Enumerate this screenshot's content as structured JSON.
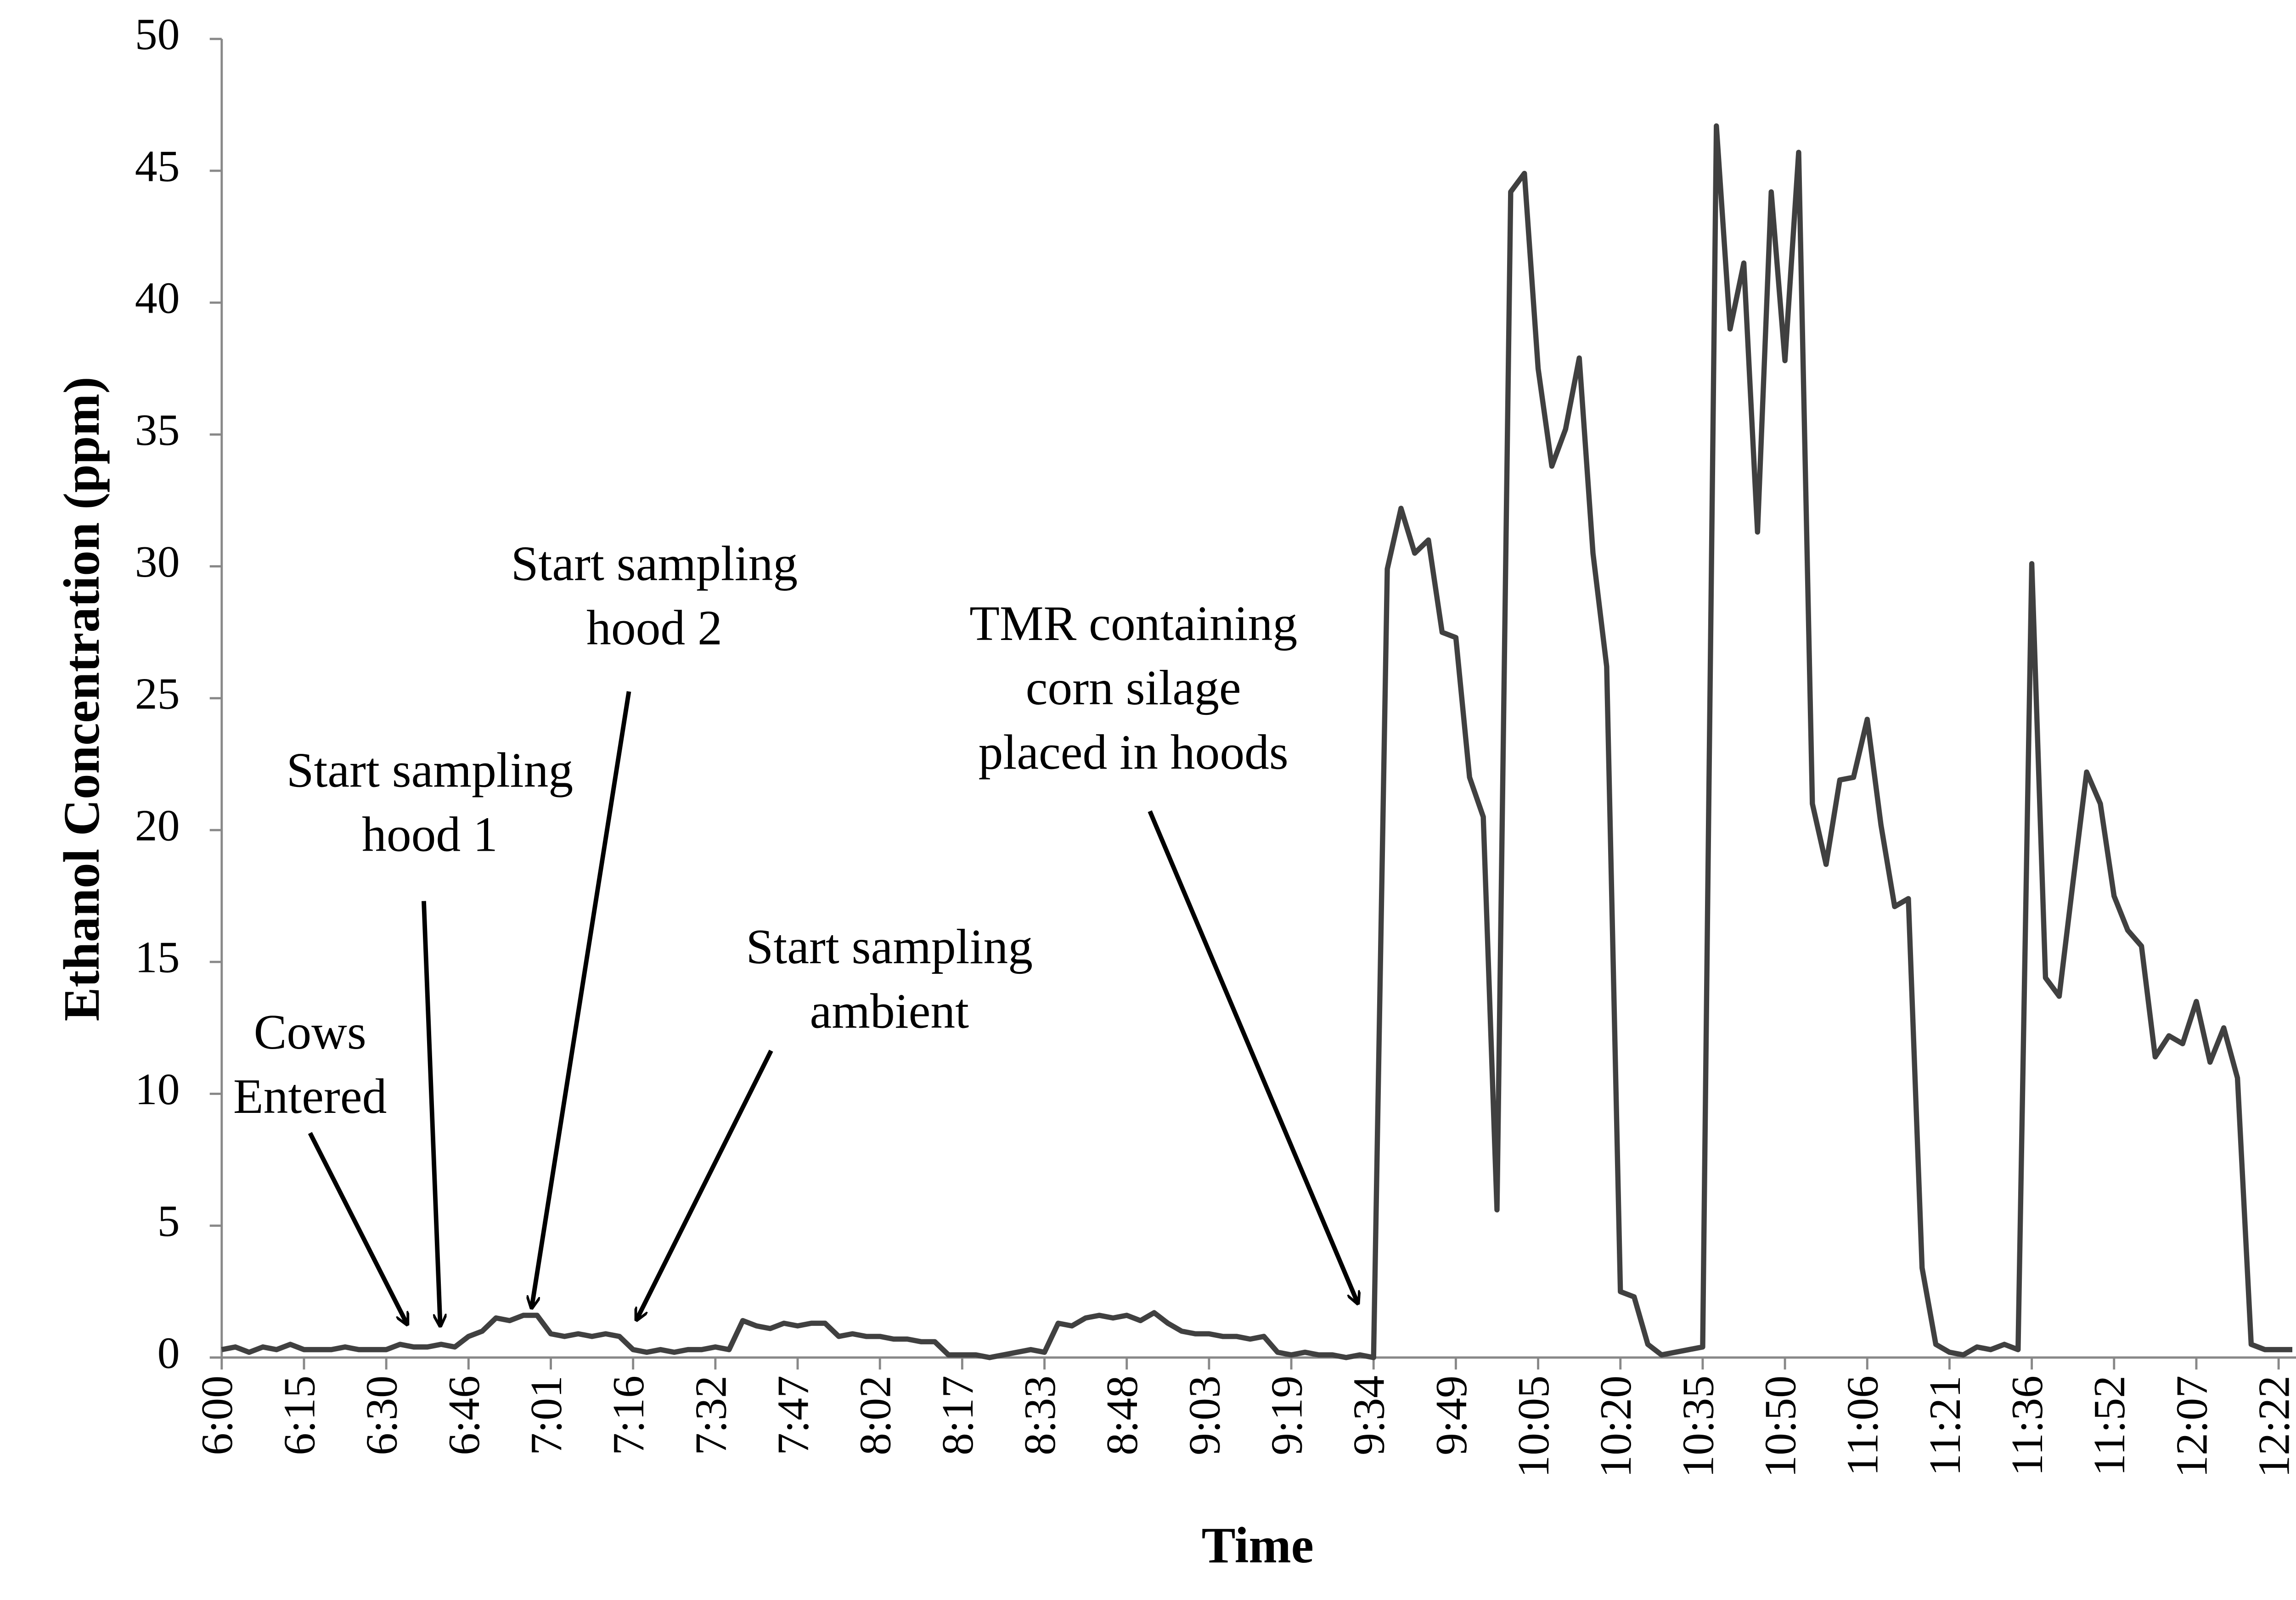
{
  "chart_data": {
    "type": "line",
    "xlabel": "Time",
    "ylabel": "Ethanol Concentration (ppm)",
    "categories": [
      "6:00",
      null,
      null,
      null,
      null,
      null,
      "6:15",
      null,
      null,
      null,
      null,
      null,
      "6:30",
      null,
      null,
      null,
      null,
      null,
      "6:46",
      null,
      null,
      null,
      null,
      null,
      "7:01",
      null,
      null,
      null,
      null,
      null,
      "7:16",
      null,
      null,
      null,
      null,
      null,
      "7:32",
      null,
      null,
      null,
      null,
      null,
      "7:47",
      null,
      null,
      null,
      null,
      null,
      "8:02",
      null,
      null,
      null,
      null,
      null,
      "8:17",
      null,
      null,
      null,
      null,
      null,
      "8:33",
      null,
      null,
      null,
      null,
      null,
      "8:48",
      null,
      null,
      null,
      null,
      null,
      "9:03",
      null,
      null,
      null,
      null,
      null,
      "9:19",
      null,
      null,
      null,
      null,
      null,
      "9:34",
      null,
      null,
      null,
      null,
      null,
      "9:49",
      null,
      null,
      null,
      null,
      null,
      "10:05",
      null,
      null,
      null,
      null,
      null,
      "10:20",
      null,
      null,
      null,
      null,
      null,
      "10:35",
      null,
      null,
      null,
      null,
      null,
      "10:50",
      null,
      null,
      null,
      null,
      null,
      "11:06",
      null,
      null,
      null,
      null,
      null,
      "11:21",
      null,
      null,
      null,
      null,
      null,
      "11:36",
      null,
      null,
      null,
      null,
      null,
      "11:52",
      null,
      null,
      null,
      null,
      null,
      "12:07",
      null,
      null,
      null,
      null,
      null,
      "12:22",
      null
    ],
    "series": [
      {
        "name": "Ethanol",
        "color": "#404040",
        "values": [
          0.3,
          0.4,
          0.2,
          0.4,
          0.3,
          0.5,
          0.3,
          0.3,
          0.3,
          0.4,
          0.3,
          0.3,
          0.3,
          0.5,
          0.4,
          0.4,
          0.5,
          0.4,
          0.8,
          1.0,
          1.5,
          1.4,
          1.6,
          1.6,
          0.9,
          0.8,
          0.9,
          0.8,
          0.9,
          0.8,
          0.3,
          0.2,
          0.3,
          0.2,
          0.3,
          0.3,
          0.4,
          0.3,
          1.4,
          1.2,
          1.1,
          1.3,
          1.2,
          1.3,
          1.3,
          0.8,
          0.9,
          0.8,
          0.8,
          0.7,
          0.7,
          0.6,
          0.6,
          0.1,
          0.1,
          0.1,
          0.0,
          0.1,
          0.2,
          0.3,
          0.2,
          1.3,
          1.2,
          1.5,
          1.6,
          1.5,
          1.6,
          1.4,
          1.7,
          1.3,
          1.0,
          0.9,
          0.9,
          0.8,
          0.8,
          0.7,
          0.8,
          0.2,
          0.1,
          0.2,
          0.1,
          0.1,
          0.0,
          0.1,
          0.0,
          29.9,
          32.2,
          30.5,
          31.0,
          27.5,
          27.3,
          22.0,
          20.5,
          5.6,
          44.2,
          44.9,
          37.5,
          33.8,
          35.2,
          37.9,
          30.5,
          26.2,
          2.5,
          2.3,
          0.5,
          0.1,
          0.2,
          0.3,
          0.4,
          46.7,
          39.0,
          41.5,
          31.3,
          44.2,
          37.8,
          45.7,
          21.0,
          18.7,
          21.9,
          22.0,
          24.2,
          20.2,
          17.1,
          17.4,
          3.4,
          0.5,
          0.2,
          0.1,
          0.4,
          0.3,
          0.5,
          0.3,
          30.1,
          14.4,
          13.7,
          18.0,
          22.2,
          21.0,
          17.5,
          16.2,
          15.6,
          11.4,
          12.2,
          11.9,
          13.5,
          11.2,
          12.5,
          10.6,
          0.5,
          0.3,
          0.3,
          0.3
        ]
      }
    ],
    "ylim": [
      0,
      50
    ],
    "yticks": [
      0,
      5,
      10,
      15,
      20,
      25,
      30,
      35,
      40,
      45,
      50
    ],
    "annotations": [
      {
        "text": [
          "Cows",
          "Entered"
        ]
      },
      {
        "text": [
          "Start sampling",
          "hood 1"
        ]
      },
      {
        "text": [
          "Start sampling",
          "hood 2"
        ]
      },
      {
        "text": [
          "Start sampling",
          "ambient"
        ]
      },
      {
        "text": [
          "TMR containing",
          "corn silage",
          "placed in hoods"
        ]
      }
    ]
  }
}
